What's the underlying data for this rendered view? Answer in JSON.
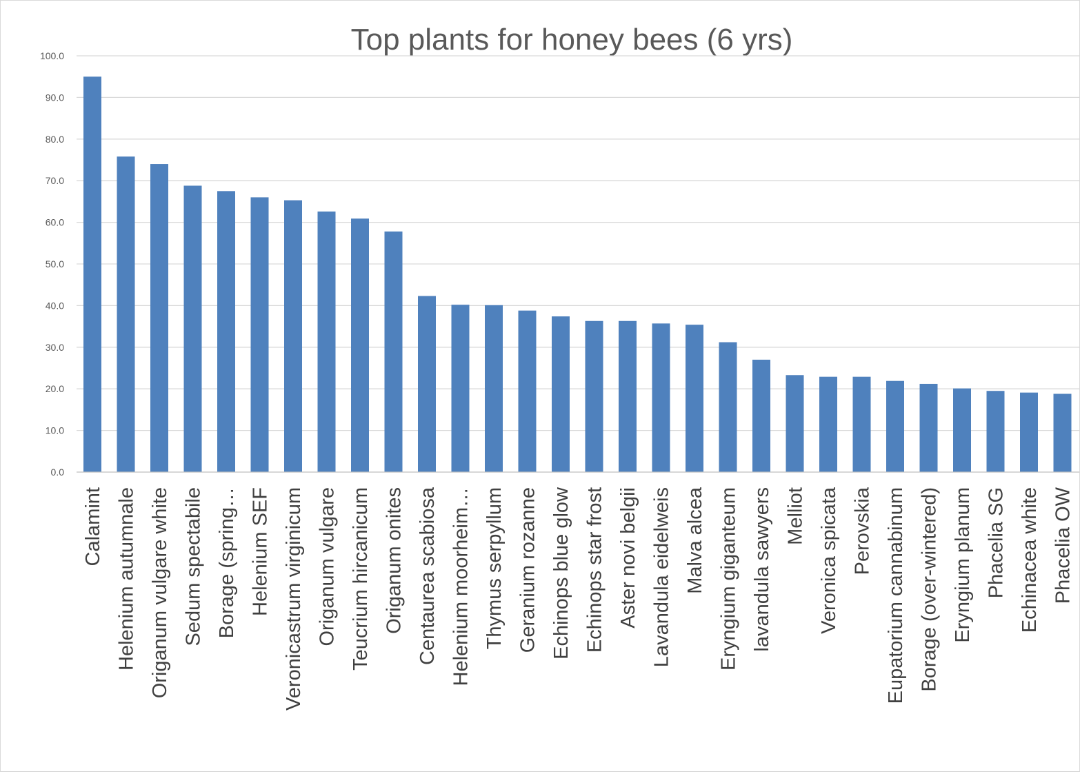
{
  "chart_data": {
    "type": "bar",
    "title": "Top plants for honey bees (6 yrs)",
    "xlabel": "",
    "ylabel": "",
    "ylim": [
      0,
      100
    ],
    "yticks": [
      "0.0",
      "10.0",
      "20.0",
      "30.0",
      "40.0",
      "50.0",
      "60.0",
      "70.0",
      "80.0",
      "90.0",
      "100.0"
    ],
    "grid": true,
    "legend": "none",
    "bar_color": "#4f81bd",
    "categories": [
      "Calamint",
      "Helenium autumnale",
      "Origanum vulgare white",
      "Sedum spectabile",
      "Borage (spring…",
      "Helenium SEF",
      "Veronicastrum virginicum",
      "Origanum vulgare",
      "Teucrium hircanicum",
      "Origanum onites",
      "Centaurea scabiosa",
      "Helenium moorheim…",
      "Thymus serpyllum",
      "Geranium rozanne",
      "Echinops blue glow",
      "Echinops star frost",
      "Aster novi belgii",
      "Lavandula eidelweis",
      "Malva alcea",
      "Eryngium giganteum",
      "lavandula sawyers",
      "Melliot",
      "Veronica spicata",
      "Perovskia",
      "Eupatorium cannabinum",
      "Borage (over-wintered)",
      "Eryngium planum",
      "Phacelia SG",
      "Echinacea white",
      "Phacelia OW"
    ],
    "values": [
      95.0,
      75.8,
      74.0,
      68.8,
      67.5,
      66.0,
      65.3,
      62.6,
      60.9,
      57.8,
      42.3,
      40.2,
      40.1,
      38.8,
      37.4,
      36.3,
      36.3,
      35.7,
      35.4,
      31.2,
      27.0,
      23.3,
      22.9,
      22.9,
      21.9,
      21.2,
      20.1,
      19.5,
      19.1,
      18.8
    ]
  }
}
